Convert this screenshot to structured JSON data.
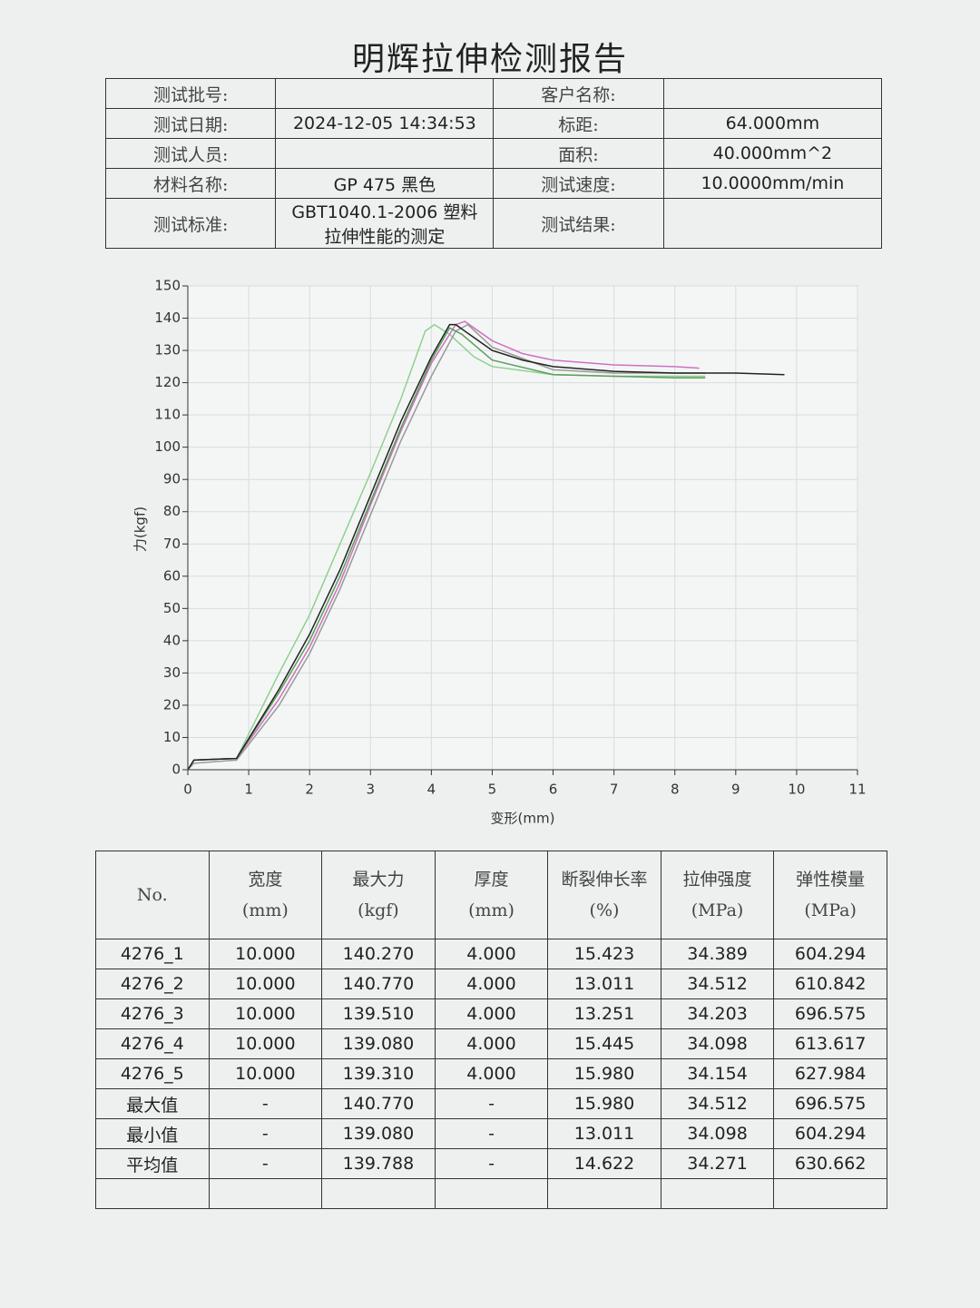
{
  "title": "明辉拉伸检测报告",
  "header": {
    "left": [
      {
        "label": "测试批号:"
      },
      {
        "label": "测试日期:",
        "value": [
          "2024-12-05 14:34:53"
        ]
      },
      {
        "label": "测试人员:"
      },
      {
        "label": "材料名称:",
        "value": [
          "GP 475  黑色"
        ]
      },
      {
        "label": "测试标准:",
        "value": [
          "GBT1040.1-2006 塑料",
          "拉伸性能的测定"
        ]
      }
    ],
    "right": [
      {
        "label": "客户名称:"
      },
      {
        "label": "标距:",
        "value": [
          "64.000mm"
        ]
      },
      {
        "label": "面积:",
        "value": [
          "40.000mm^2"
        ]
      },
      {
        "label": "测试速度:",
        "value": [
          "10.0000mm/min"
        ]
      },
      {
        "label": "测试结果:"
      }
    ]
  },
  "chart_data": {
    "type": "line",
    "xlabel": "变形(mm)",
    "ylabel": "力(kgf)",
    "xlim": [
      0,
      11
    ],
    "xticks": [
      0,
      1,
      2,
      3,
      4,
      5,
      6,
      7,
      8,
      9,
      10,
      11
    ],
    "ylim": [
      0,
      150
    ],
    "yticks": [
      0,
      10,
      20,
      30,
      40,
      50,
      60,
      70,
      80,
      90,
      100,
      110,
      120,
      130,
      140,
      150
    ],
    "grid": true,
    "series": [
      {
        "color": "#8fd08f",
        "x": [
          0,
          0.1,
          0.8,
          1.5,
          2,
          2.5,
          3,
          3.5,
          3.9,
          4.05,
          4.3,
          4.7,
          5,
          6,
          7,
          8,
          8.5
        ],
        "values": [
          0,
          3,
          3.5,
          30,
          48,
          70,
          92,
          115,
          136,
          138,
          135,
          128,
          125,
          122.5,
          122,
          122,
          122
        ]
      },
      {
        "color": "#d070c0",
        "x": [
          0,
          0.1,
          0.8,
          1.5,
          2,
          2.5,
          3,
          3.5,
          4,
          4.4,
          4.55,
          5,
          5.5,
          6,
          7,
          8,
          8.4
        ],
        "values": [
          0,
          3,
          3.5,
          22,
          38,
          58,
          82,
          105,
          126,
          138,
          139,
          133,
          129,
          127,
          125.5,
          125,
          124.5
        ]
      },
      {
        "color": "#999999",
        "x": [
          0,
          0.1,
          0.8,
          1.5,
          2,
          2.5,
          3,
          3.5,
          4,
          4.4,
          4.6,
          5,
          6,
          7,
          8,
          8.5
        ],
        "values": [
          0,
          2,
          3,
          20,
          36,
          56,
          79,
          102,
          122,
          136,
          138,
          131,
          124,
          123,
          123,
          123
        ]
      },
      {
        "color": "#5aa05a",
        "x": [
          0,
          0.1,
          0.8,
          1.5,
          2,
          2.5,
          3,
          3.5,
          4,
          4.3,
          4.5,
          5,
          6,
          7,
          8,
          8.5
        ],
        "values": [
          0,
          3,
          3.5,
          24,
          40,
          60,
          83,
          106,
          127,
          137,
          135,
          127,
          122.5,
          122,
          121.5,
          121.5
        ]
      },
      {
        "color": "#222222",
        "x": [
          0,
          0.1,
          0.8,
          1.5,
          2,
          2.5,
          3,
          3.5,
          4,
          4.3,
          4.4,
          4.7,
          5,
          5.5,
          6,
          7,
          8,
          9,
          9.8
        ],
        "values": [
          0,
          3,
          3.5,
          25,
          42,
          62,
          85,
          108,
          128,
          138,
          138,
          134,
          130,
          127,
          125,
          123.5,
          123,
          123,
          122.5
        ]
      }
    ]
  },
  "results": {
    "columns": [
      {
        "name": "No."
      },
      {
        "name": "宽度",
        "unit": "(mm)"
      },
      {
        "name": "最大力",
        "unit": "(kgf)"
      },
      {
        "name": "厚度",
        "unit": "(mm)"
      },
      {
        "name": "断裂伸长率",
        "unit": "(%)"
      },
      {
        "name": "拉伸强度",
        "unit": "(MPa)"
      },
      {
        "name": "弹性模量",
        "unit": "(MPa)"
      }
    ],
    "rows": [
      [
        "4276_1",
        "10.000",
        "140.270",
        "4.000",
        "15.423",
        "34.389",
        "604.294"
      ],
      [
        "4276_2",
        "10.000",
        "140.770",
        "4.000",
        "13.011",
        "34.512",
        "610.842"
      ],
      [
        "4276_3",
        "10.000",
        "139.510",
        "4.000",
        "13.251",
        "34.203",
        "696.575"
      ],
      [
        "4276_4",
        "10.000",
        "139.080",
        "4.000",
        "15.445",
        "34.098",
        "613.617"
      ],
      [
        "4276_5",
        "10.000",
        "139.310",
        "4.000",
        "15.980",
        "34.154",
        "627.984"
      ],
      [
        "最大值",
        "-",
        "140.770",
        "-",
        "15.980",
        "34.512",
        "696.575"
      ],
      [
        "最小值",
        "-",
        "139.080",
        "-",
        "13.011",
        "34.098",
        "604.294"
      ],
      [
        "平均值",
        "-",
        "139.788",
        "-",
        "14.622",
        "34.271",
        "630.662"
      ]
    ]
  }
}
